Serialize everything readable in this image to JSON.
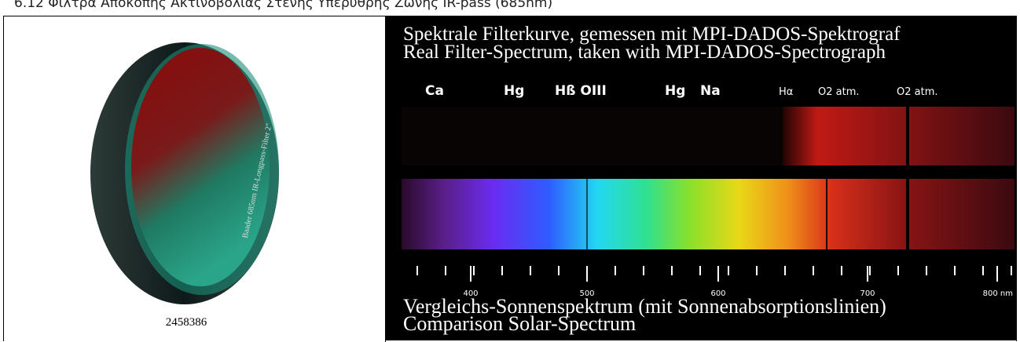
{
  "header": {
    "title": "6.12   Φίλτρα Αποκοπής Ακτινοβολίας Στενής Υπέρυθρης Ζώνης IR-pass (685nm)"
  },
  "product": {
    "engraving": "Baader 685nm IR-Longpass-Filter 2\"",
    "code": "2458386"
  },
  "spectrum": {
    "title_de": "Spektrale Filterkurve, gemessen mit MPI-DADOS-Spektrograf",
    "title_en": "Real Filter-Spectrum, taken with MPI-DADOS-Spectrograph",
    "lines": [
      "Ca",
      "Hg",
      "Hß OIII",
      "Hg",
      "Na",
      "Hα",
      "O2 atm.",
      "O2 atm."
    ],
    "scale": [
      "400",
      "500",
      "600",
      "700",
      "800 nm"
    ],
    "caption_de": "Vergleichs-Sonnenspektrum (mit Sonnenabsorptionslinien)",
    "caption_en": "Comparison Solar-Spectrum"
  }
}
